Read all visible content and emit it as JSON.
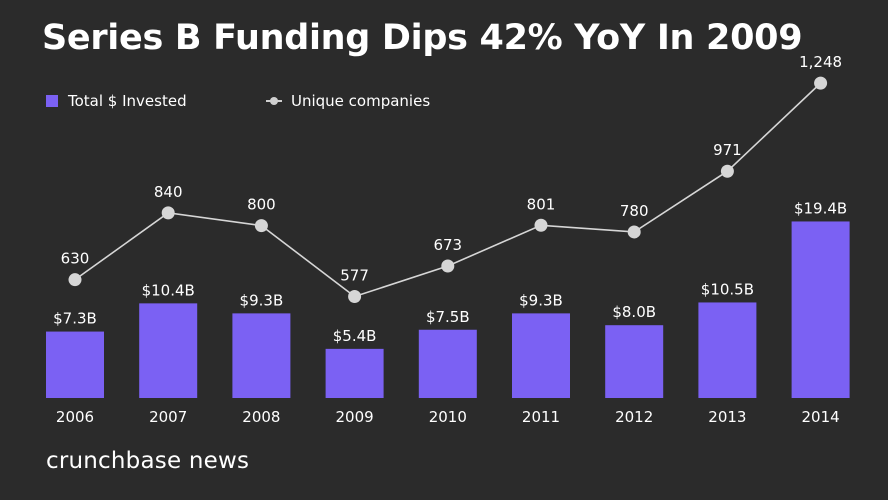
{
  "title": "Series B Funding Dips 42% YoY In 2009",
  "brand": "crunchbase news",
  "colors": {
    "background": "#2b2b2b",
    "bar": "#7b61f3",
    "line": "#d6d6d6",
    "text": "#ffffff"
  },
  "chart_data": {
    "type": "bar",
    "title": "Series B Funding Dips 42% YoY In 2009",
    "xlabel": "",
    "ylabel": "",
    "categories": [
      "2006",
      "2007",
      "2008",
      "2009",
      "2010",
      "2011",
      "2012",
      "2013",
      "2014"
    ],
    "legend_position": "top-left",
    "grid": false,
    "series": [
      {
        "name": "Total $ Invested",
        "type": "bar",
        "unit": "USD billions",
        "values": [
          7.3,
          10.4,
          9.3,
          5.4,
          7.5,
          9.3,
          8.0,
          10.5,
          19.4
        ],
        "labels": [
          "$7.3B",
          "$10.4B",
          "$9.3B",
          "$5.4B",
          "$7.5B",
          "$9.3B",
          "$8.0B",
          "$10.5B",
          "$19.4B"
        ]
      },
      {
        "name": "Unique companies",
        "type": "line",
        "unit": "companies",
        "values": [
          630,
          840,
          800,
          577,
          673,
          801,
          780,
          971,
          1248
        ],
        "labels": [
          "630",
          "840",
          "800",
          "577",
          "673",
          "801",
          "780",
          "971",
          "1,248"
        ]
      }
    ]
  }
}
